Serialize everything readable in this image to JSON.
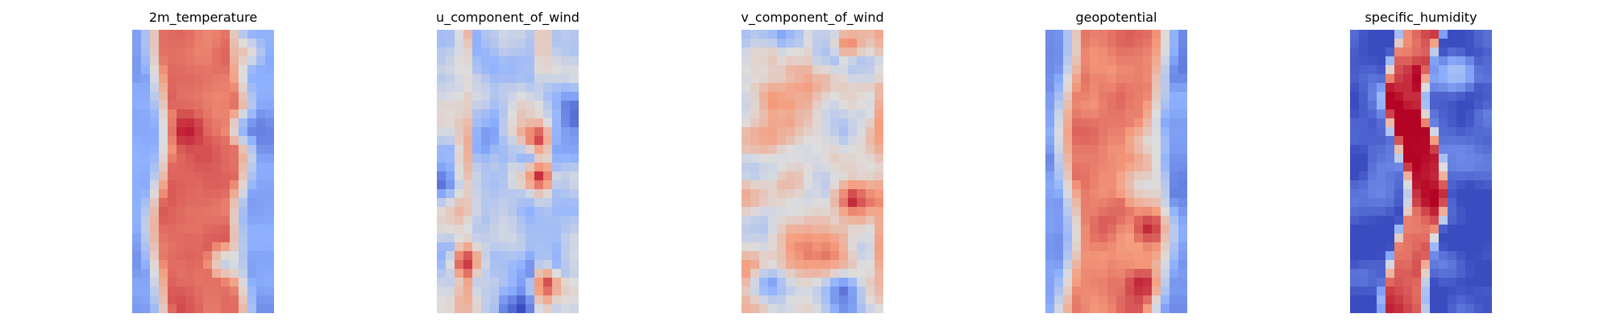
{
  "chart_data": [
    {
      "type": "heatmap",
      "title": "2m_temperature",
      "colormap": "coolwarm",
      "axes": "off",
      "grid": "off",
      "legend": "none",
      "grid_shape": [
        32,
        16
      ],
      "pattern": {
        "kind": "band",
        "background": 0.22,
        "peak": 0.83,
        "band_center": 0.48,
        "band_halfwidth": 0.3,
        "meander": 0.05,
        "noise": 0.06,
        "seed": 11,
        "spots": [
          {
            "row": 0.36,
            "col": 0.38,
            "radius": 0.05,
            "value": 0.98
          },
          {
            "row": 0.35,
            "col": 0.83,
            "radius": 0.06,
            "value": 0.1
          },
          {
            "row": 0.82,
            "col": 0.66,
            "radius": 0.05,
            "value": 0.38
          },
          {
            "row": 0.08,
            "col": 0.8,
            "radius": 0.05,
            "value": 0.62
          }
        ]
      }
    },
    {
      "type": "heatmap",
      "title": "u_component_of_wind",
      "colormap": "coolwarm",
      "axes": "off",
      "grid": "off",
      "legend": "none",
      "grid_shape": [
        32,
        16
      ],
      "pattern": {
        "kind": "noise",
        "background": 0.38,
        "noise": 0.22,
        "seed": 23,
        "streaks": [
          {
            "col": 0.2,
            "value": 0.8,
            "width": 0.05
          },
          {
            "col": 0.75,
            "value": 0.72,
            "width": 0.05
          }
        ],
        "spots": [
          {
            "row": 0.38,
            "col": 0.7,
            "radius": 0.05,
            "value": 0.98
          },
          {
            "row": 0.52,
            "col": 0.72,
            "radius": 0.05,
            "value": 0.95
          },
          {
            "row": 0.9,
            "col": 0.78,
            "radius": 0.05,
            "value": 0.92
          },
          {
            "row": 0.82,
            "col": 0.2,
            "radius": 0.05,
            "value": 0.95
          }
        ]
      }
    },
    {
      "type": "heatmap",
      "title": "v_component_of_wind",
      "colormap": "coolwarm",
      "axes": "off",
      "grid": "off",
      "legend": "none",
      "grid_shape": [
        32,
        16
      ],
      "pattern": {
        "kind": "noise",
        "background": 0.52,
        "noise": 0.22,
        "seed": 37,
        "streaks": [
          {
            "col": 0.96,
            "value": 0.78,
            "width": 0.04
          }
        ],
        "spots": [
          {
            "row": 0.6,
            "col": 0.78,
            "radius": 0.06,
            "value": 0.98
          },
          {
            "row": 0.05,
            "col": 0.75,
            "radius": 0.05,
            "value": 0.85
          },
          {
            "row": 0.9,
            "col": 0.2,
            "radius": 0.06,
            "value": 0.15
          },
          {
            "row": 0.92,
            "col": 0.72,
            "radius": 0.05,
            "value": 0.1
          }
        ]
      }
    },
    {
      "type": "heatmap",
      "title": "geopotential",
      "colormap": "coolwarm",
      "axes": "off",
      "grid": "off",
      "legend": "none",
      "grid_shape": [
        32,
        16
      ],
      "pattern": {
        "kind": "band",
        "background": 0.18,
        "peak": 0.8,
        "band_center": 0.48,
        "band_halfwidth": 0.33,
        "meander": 0.05,
        "noise": 0.07,
        "seed": 51,
        "spots": [
          {
            "row": 0.55,
            "col": 0.7,
            "radius": 0.07,
            "value": 0.45
          },
          {
            "row": 0.7,
            "col": 0.72,
            "radius": 0.05,
            "value": 0.95
          },
          {
            "row": 0.9,
            "col": 0.68,
            "radius": 0.05,
            "value": 0.98
          },
          {
            "row": 0.4,
            "col": 0.72,
            "radius": 0.06,
            "value": 0.5
          }
        ]
      }
    },
    {
      "type": "heatmap",
      "title": "specific_humidity",
      "colormap": "coolwarm",
      "axes": "off",
      "grid": "off",
      "legend": "none",
      "grid_shape": [
        32,
        16
      ],
      "pattern": {
        "kind": "band",
        "background": 0.06,
        "peak": 0.92,
        "band_center": 0.46,
        "band_halfwidth": 0.14,
        "meander": 0.08,
        "noise": 0.16,
        "seed": 67,
        "spots": [
          {
            "row": 0.4,
            "col": 0.5,
            "radius": 0.05,
            "value": 1.0
          },
          {
            "row": 0.15,
            "col": 0.75,
            "radius": 0.06,
            "value": 0.38
          }
        ]
      }
    }
  ]
}
